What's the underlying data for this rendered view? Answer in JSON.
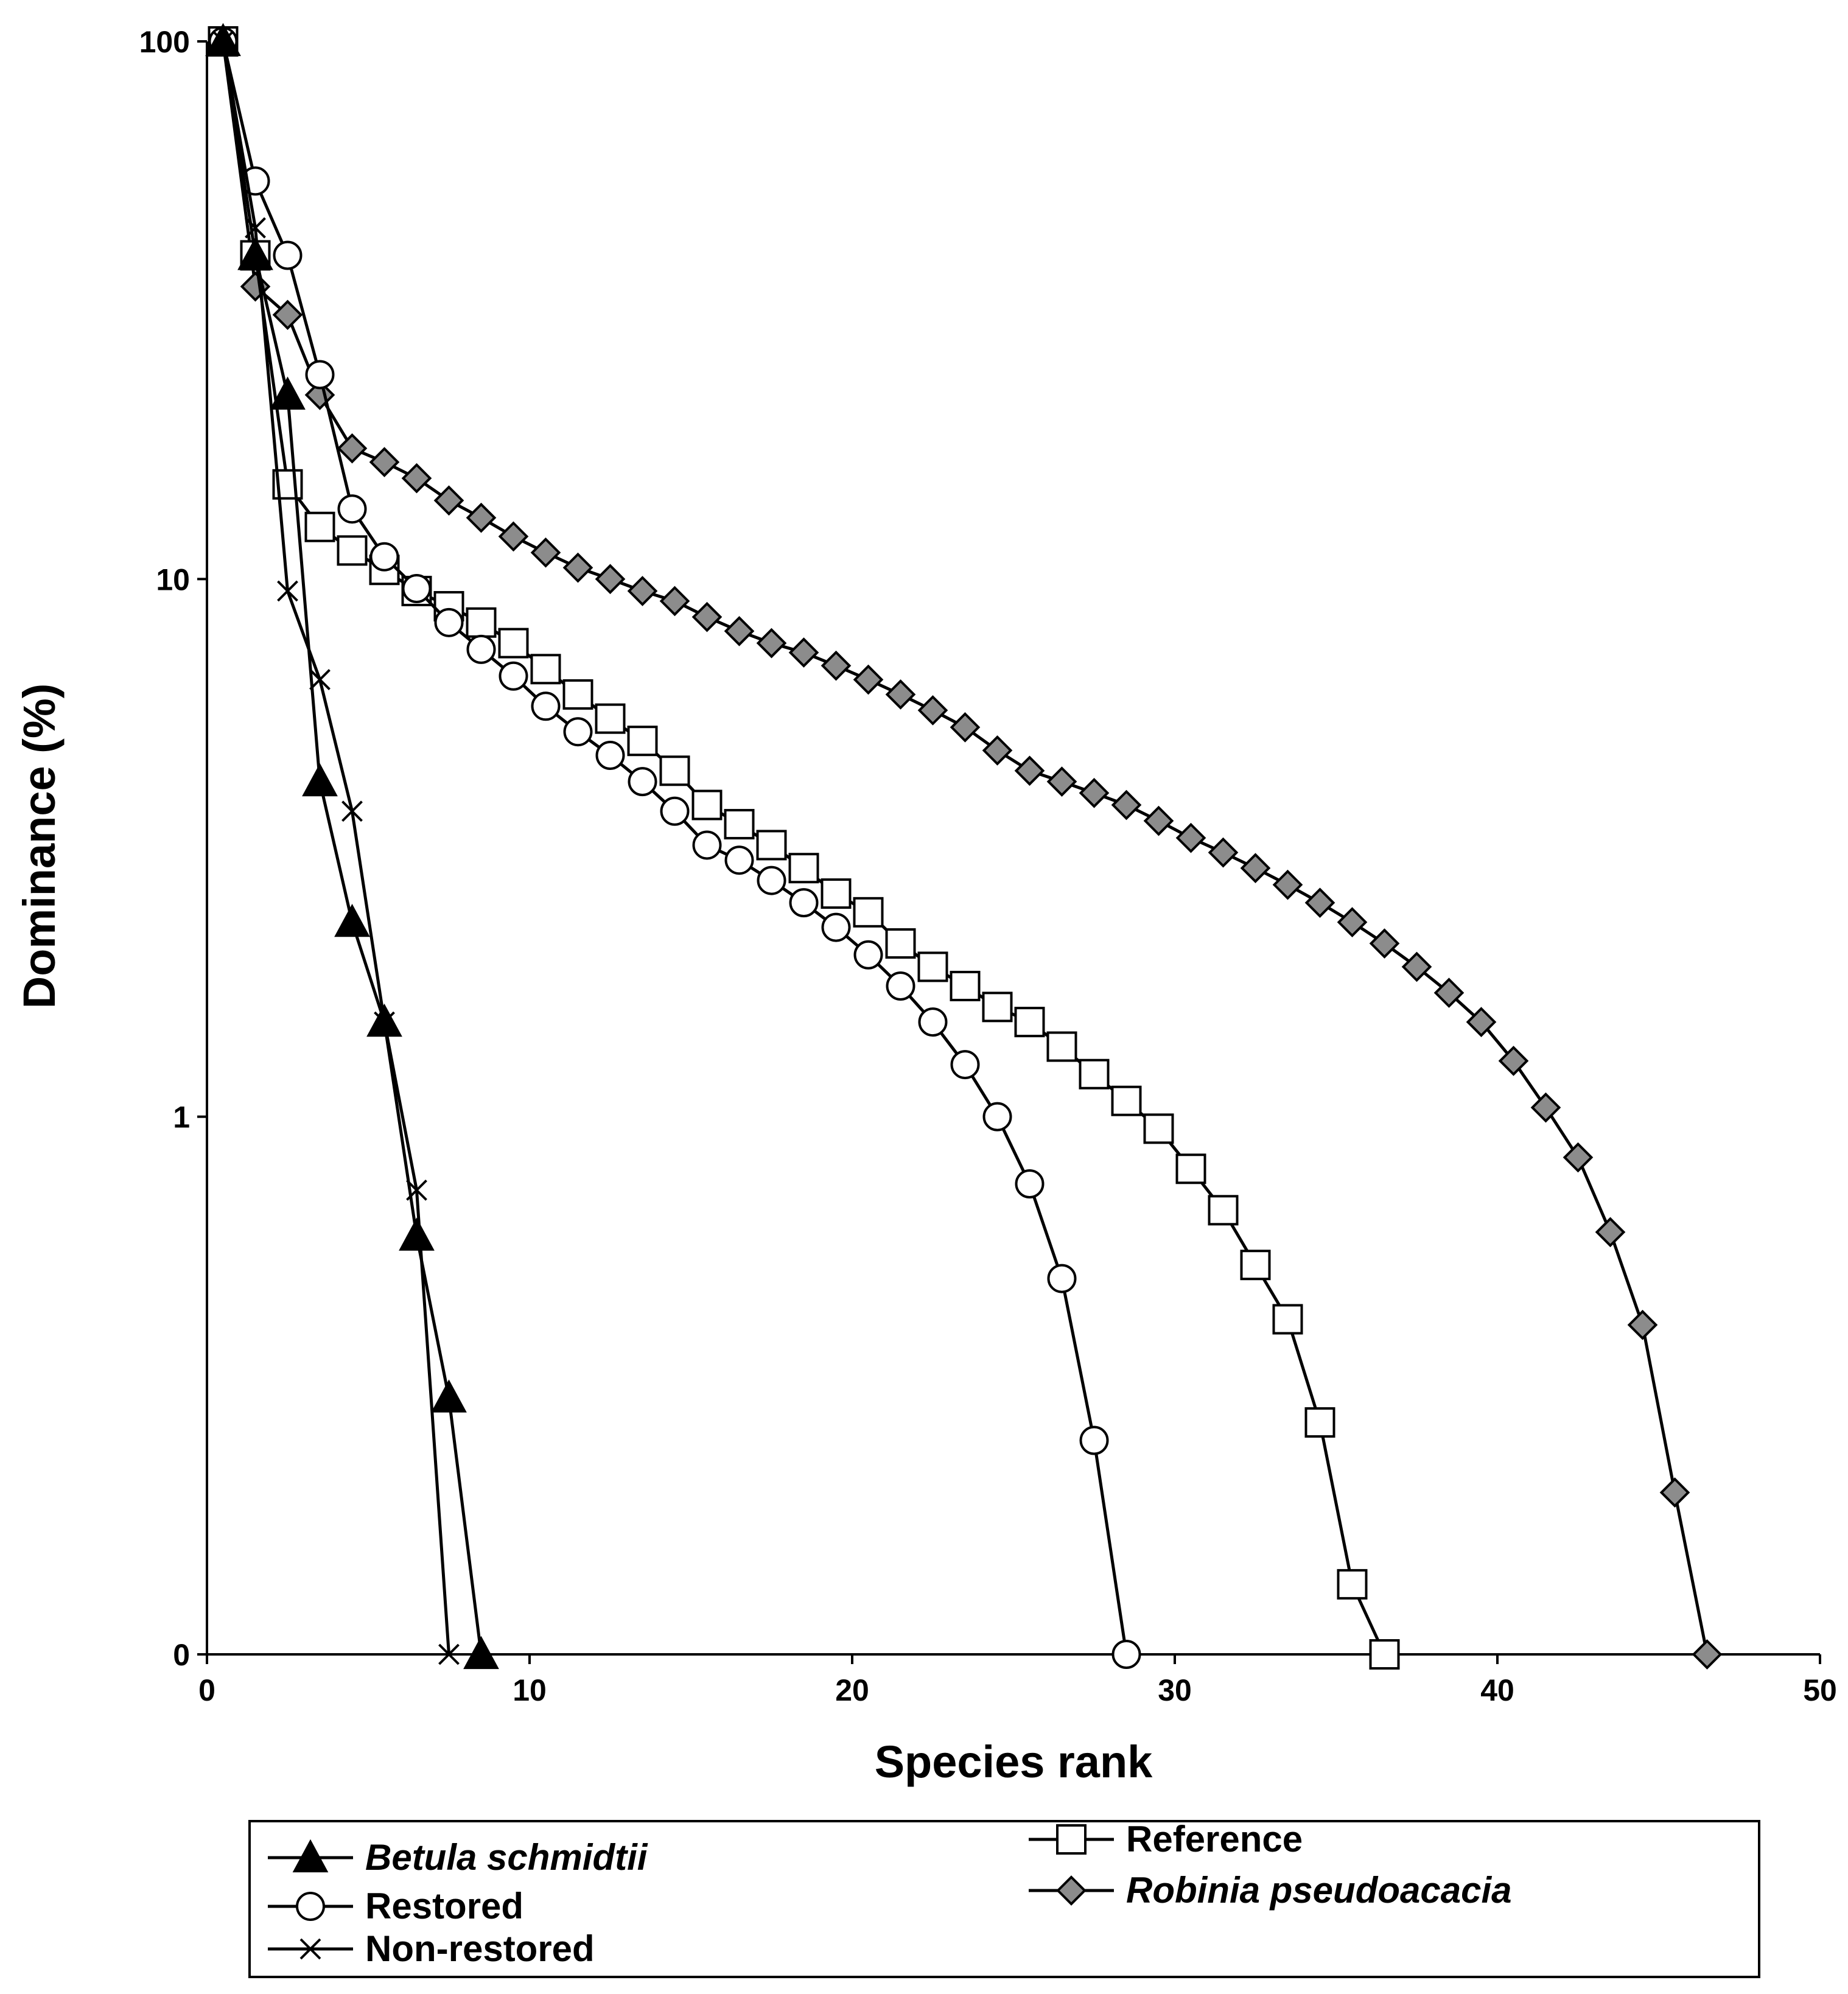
{
  "chart_data": {
    "type": "line",
    "title": "",
    "xlabel": "Species rank",
    "ylabel": "Dominance (%)",
    "xlim": [
      0,
      50
    ],
    "xticks": [
      0,
      10,
      20,
      30,
      40,
      50
    ],
    "yscale": "log",
    "ylim": [
      0.1,
      100
    ],
    "yticks": [
      {
        "value": 0.1,
        "label": "0"
      },
      {
        "value": 1,
        "label": "1"
      },
      {
        "value": 10,
        "label": "10"
      },
      {
        "value": 100,
        "label": "100"
      }
    ],
    "grid": false,
    "legend_position": "bottom",
    "series": [
      {
        "name": "Betula schmidtii",
        "italic": true,
        "marker": "triangle",
        "marker_fill": "#000000",
        "x": [
          0.5,
          1.5,
          2.5,
          3.5,
          4.5,
          5.5,
          6.5,
          7.5,
          8.5
        ],
        "values": [
          100,
          40,
          22,
          4.2,
          2.3,
          1.5,
          0.6,
          0.3,
          0.1
        ]
      },
      {
        "name": "Restored",
        "italic": false,
        "marker": "circle",
        "marker_fill": "#ffffff",
        "x": [
          0.5,
          1.5,
          2.5,
          3.5,
          4.5,
          5.5,
          6.5,
          7.5,
          8.5,
          9.5,
          10.5,
          11.5,
          12.5,
          13.5,
          14.5,
          15.5,
          16.5,
          17.5,
          18.5,
          19.5,
          20.5,
          21.5,
          22.5,
          23.5,
          24.5,
          25.5,
          26.5,
          27.5,
          28.5
        ],
        "values": [
          100,
          55,
          40,
          24,
          13.5,
          11,
          9.6,
          8.3,
          7.4,
          6.6,
          5.8,
          5.2,
          4.7,
          4.2,
          3.7,
          3.2,
          3.0,
          2.75,
          2.5,
          2.25,
          2.0,
          1.75,
          1.5,
          1.25,
          1.0,
          0.75,
          0.5,
          0.25,
          0.1
        ]
      },
      {
        "name": "Non-restored",
        "italic": false,
        "marker": "x",
        "marker_fill": "none",
        "x": [
          0.5,
          1.5,
          2.5,
          3.5,
          4.5,
          5.5,
          6.5,
          7.5
        ],
        "values": [
          100,
          45,
          9.5,
          6.5,
          3.7,
          1.5,
          0.73,
          0.1
        ]
      },
      {
        "name": "Reference",
        "italic": false,
        "marker": "square",
        "marker_fill": "#ffffff",
        "x": [
          0.5,
          1.5,
          2.5,
          3.5,
          4.5,
          5.5,
          6.5,
          7.5,
          8.5,
          9.5,
          10.5,
          11.5,
          12.5,
          13.5,
          14.5,
          15.5,
          16.5,
          17.5,
          18.5,
          19.5,
          20.5,
          21.5,
          22.5,
          23.5,
          24.5,
          25.5,
          26.5,
          27.5,
          28.5,
          29.5,
          30.5,
          31.5,
          32.5,
          33.5,
          34.5,
          35.5,
          36.5
        ],
        "values": [
          100,
          40,
          15,
          12.5,
          11.3,
          10.4,
          9.5,
          8.9,
          8.3,
          7.6,
          6.8,
          6.1,
          5.5,
          5.0,
          4.4,
          3.8,
          3.5,
          3.2,
          2.9,
          2.6,
          2.4,
          2.1,
          1.9,
          1.75,
          1.6,
          1.5,
          1.35,
          1.2,
          1.07,
          0.95,
          0.8,
          0.67,
          0.53,
          0.42,
          0.27,
          0.135,
          0.1
        ]
      },
      {
        "name": "Robinia pseudoacacia",
        "italic": true,
        "marker": "diamond",
        "marker_fill": "#8c8c8c",
        "x": [
          0.5,
          1.5,
          2.5,
          3.5,
          4.5,
          5.5,
          6.5,
          7.5,
          8.5,
          9.5,
          10.5,
          11.5,
          12.5,
          13.5,
          14.5,
          15.5,
          16.5,
          17.5,
          18.5,
          19.5,
          20.5,
          21.5,
          22.5,
          23.5,
          24.5,
          25.5,
          26.5,
          27.5,
          28.5,
          29.5,
          30.5,
          31.5,
          32.5,
          33.5,
          34.5,
          35.5,
          36.5,
          37.5,
          38.5,
          39.5,
          40.5,
          41.5,
          42.5,
          43.5,
          44.5,
          45.5,
          46.5
        ],
        "values": [
          100,
          35,
          31,
          22,
          17.5,
          16.5,
          15.4,
          14,
          13,
          12,
          11.2,
          10.5,
          10,
          9.5,
          9.1,
          8.5,
          8,
          7.6,
          7.3,
          6.9,
          6.5,
          6.1,
          5.7,
          5.3,
          4.8,
          4.4,
          4.2,
          4.0,
          3.8,
          3.55,
          3.3,
          3.1,
          2.9,
          2.7,
          2.5,
          2.3,
          2.1,
          1.9,
          1.7,
          1.5,
          1.27,
          1.04,
          0.84,
          0.61,
          0.41,
          0.2,
          0.1
        ]
      }
    ]
  }
}
